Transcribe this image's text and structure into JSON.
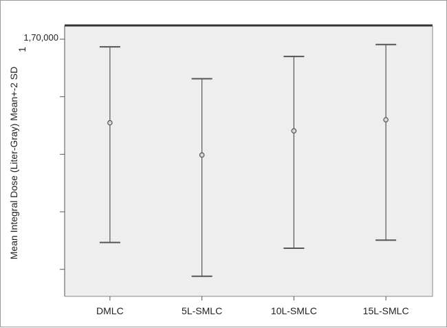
{
  "chart_data": {
    "type": "errorbar",
    "ylabel": "Mean Integral Dose (Liter-Gray) Mean+-2 SD",
    "ylabel_suffix": "1",
    "y_top_tick_label": "1,70,000",
    "categories": [
      "DMLC",
      "5L-SMLC",
      "10L-SMLC",
      "15L-SMLC"
    ],
    "series": [
      {
        "mean": [
          148200,
          139800,
          146100,
          149000
        ],
        "lower": [
          117000,
          108200,
          115500,
          117600
        ],
        "upper": [
          168000,
          159700,
          165500,
          168600
        ]
      }
    ],
    "ylim": [
      106000,
      170000
    ],
    "y_ticks": [
      170000,
      155000,
      140000,
      125000,
      110000
    ],
    "grid": false,
    "colors": {
      "plot_bg": "#eeeeee",
      "bar": "#555555",
      "frame": "#333333"
    }
  }
}
